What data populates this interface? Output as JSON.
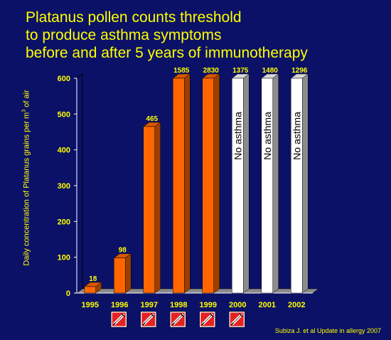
{
  "title_lines": [
    "Platanus pollen counts threshold",
    "to produce asthma symptoms",
    "before and after 5 years of immunotherapy"
  ],
  "source": "Subiza J. et al Update in allergy 2007",
  "colors": {
    "background": "#0b1167",
    "text": "#ffff00",
    "bar_asthma": "#ff6600",
    "bar_no_asthma": "#ffffff",
    "axis": "#ffffff",
    "icon_bg": "#e52222"
  },
  "chart_data": {
    "type": "bar",
    "title": "Platanus pollen counts threshold to produce asthma symptoms before and after 5 years of immunotherapy",
    "ylabel": "Daily concentration of Platanus grains per m³ of air",
    "xlabel": "",
    "ylim": [
      0,
      600
    ],
    "yticks": [
      0,
      100,
      200,
      300,
      400,
      500,
      600
    ],
    "categories": [
      "1995",
      "1996",
      "1997",
      "1998",
      "1999",
      "2000",
      "2001",
      "2002"
    ],
    "values": [
      18,
      98,
      465,
      1585,
      2830,
      1375,
      1480,
      1296
    ],
    "value_labels": [
      "18",
      "98",
      "465",
      "1585",
      "2830",
      "1375",
      "1480",
      "1296"
    ],
    "bar_status": [
      "asthma",
      "asthma",
      "asthma",
      "asthma",
      "asthma",
      "no_asthma",
      "no_asthma",
      "no_asthma"
    ],
    "bar_annotations": [
      "",
      "",
      "",
      "",
      "",
      "No asthma",
      "No asthma",
      "No asthma"
    ],
    "immunotherapy_icon_years": [
      "1996",
      "1997",
      "1998",
      "1999",
      "2000"
    ],
    "grid": false
  }
}
